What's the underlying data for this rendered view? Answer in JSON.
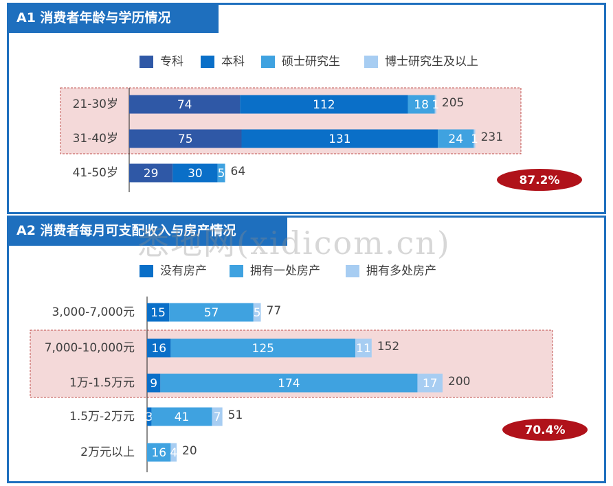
{
  "panels": [
    {
      "title": "A1 消费者年龄与学历情况",
      "legend": [
        "专科",
        "本科",
        "硕士研究生",
        "博士研究生及以上"
      ],
      "badge": "87.2%"
    },
    {
      "title": "A2 消费者每月可支配收入与房产情况",
      "legend": [
        "没有房产",
        "拥有一处房产",
        "拥有多处房产"
      ],
      "badge": "70.4%"
    }
  ],
  "colors": {
    "a1": [
      "#2f58a6",
      "#0a6fc8",
      "#3fa2e0",
      "#a7cdf2"
    ],
    "a2": [
      "#0a6fc8",
      "#3fa2e0",
      "#a7cdf2"
    ],
    "highlight_fill": "#f4d9d9",
    "highlight_border": "#c0504d",
    "badge": "#b0121a",
    "panel_border": "#1e6fbe"
  },
  "chart_data": [
    {
      "type": "bar",
      "orientation": "horizontal",
      "stacked": true,
      "categories": [
        "21-30岁",
        "31-40岁",
        "41-50岁"
      ],
      "series": [
        {
          "name": "专科",
          "values": [
            74,
            75,
            29
          ]
        },
        {
          "name": "本科",
          "values": [
            112,
            131,
            30
          ]
        },
        {
          "name": "硕士研究生",
          "values": [
            18,
            24,
            5
          ]
        },
        {
          "name": "博士研究生及以上",
          "values": [
            1,
            1,
            0
          ]
        }
      ],
      "totals": [
        205,
        231,
        64
      ],
      "highlighted_categories": [
        "21-30岁",
        "31-40岁"
      ],
      "annotation": "87.2%"
    },
    {
      "type": "bar",
      "orientation": "horizontal",
      "stacked": true,
      "categories": [
        "3,000-7,000元",
        "7,000-10,000元",
        "1万-1.5万元",
        "1.5万-2万元",
        "2万元以上"
      ],
      "series": [
        {
          "name": "没有房产",
          "values": [
            15,
            16,
            9,
            3,
            0
          ]
        },
        {
          "name": "拥有一处房产",
          "values": [
            57,
            125,
            174,
            41,
            16
          ]
        },
        {
          "name": "拥有多处房产",
          "values": [
            5,
            11,
            17,
            7,
            4
          ]
        }
      ],
      "totals": [
        77,
        152,
        200,
        51,
        20
      ],
      "highlighted_categories": [
        "7,000-10,000元",
        "1万-1.5万元"
      ],
      "annotation": "70.4%"
    }
  ],
  "watermark": "悉地网(xidicom.cn)"
}
